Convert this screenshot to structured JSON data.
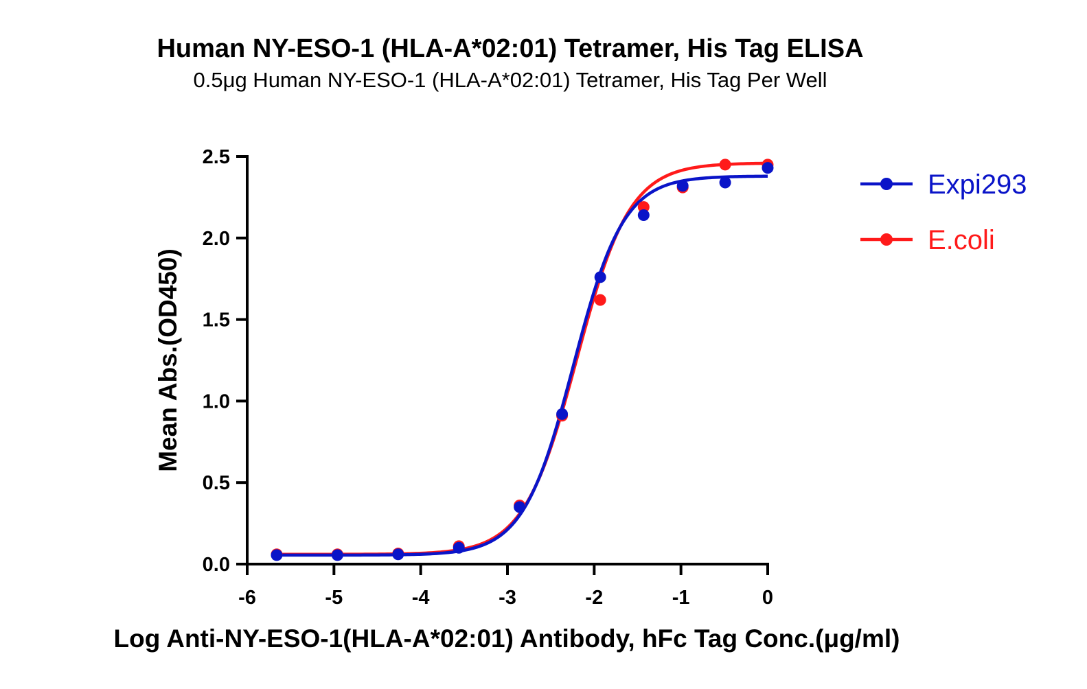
{
  "chart_data": {
    "type": "scatter",
    "title": "Human NY-ESO-1 (HLA-A*02:01) Tetramer, His Tag ELISA",
    "subtitle": "0.5μg Human NY-ESO-1 (HLA-A*02:01) Tetramer, His Tag Per Well",
    "xlabel": "Log Anti-NY-ESO-1(HLA-A*02:01) Antibody, hFc Tag Conc.(μg/ml)",
    "ylabel": "Mean Abs.(OD450)",
    "xlim": [
      -6,
      0
    ],
    "ylim": [
      0,
      2.5
    ],
    "x_ticks": [
      -6,
      -5,
      -4,
      -3,
      -2,
      -1,
      0
    ],
    "x_tick_labels": [
      "-6",
      "-5",
      "-4",
      "-3",
      "-2",
      "-1",
      "0"
    ],
    "y_ticks": [
      0,
      0.5,
      1,
      1.5,
      2,
      2.5
    ],
    "y_tick_labels": [
      "0.0",
      "0.5",
      "1.0",
      "1.5",
      "2.0",
      "2.5"
    ],
    "grid": false,
    "legend_position": "top-right",
    "fitted_curves": true,
    "series": [
      {
        "name": "E.coli",
        "color": "#ff1a1a",
        "x": [
          -5.66,
          -4.96,
          -4.26,
          -3.56,
          -2.86,
          -2.37,
          -1.93,
          -1.43,
          -0.98,
          -0.49,
          0
        ],
        "y": [
          0.06,
          0.06,
          0.065,
          0.11,
          0.36,
          0.91,
          1.62,
          2.19,
          2.31,
          2.45,
          2.45
        ],
        "fit": {
          "bottom": 0.06,
          "top": 2.46,
          "logEC50": -2.2,
          "hill": 1.42
        }
      },
      {
        "name": "Expi293",
        "color": "#0a14c8",
        "x": [
          -5.66,
          -4.96,
          -4.26,
          -3.56,
          -2.86,
          -2.37,
          -1.93,
          -1.43,
          -0.98,
          -0.49,
          0
        ],
        "y": [
          0.055,
          0.055,
          0.06,
          0.1,
          0.35,
          0.92,
          1.76,
          2.14,
          2.32,
          2.34,
          2.43
        ],
        "fit": {
          "bottom": 0.055,
          "top": 2.38,
          "logEC50": -2.24,
          "hill": 1.5
        }
      }
    ]
  }
}
